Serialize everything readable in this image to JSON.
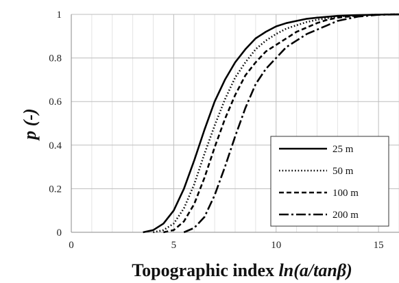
{
  "chart_data": {
    "type": "line",
    "title": "",
    "xlabel_prefix": "Topographic index ",
    "xlabel_italic": "ln(a/tanβ)",
    "ylabel": "p (-)",
    "xlim": [
      0,
      16
    ],
    "ylim": [
      0,
      1
    ],
    "x_ticks": [
      "0",
      "5",
      "10",
      "15"
    ],
    "y_ticks": [
      "0",
      "0.2",
      "0.4",
      "0.6",
      "0.8",
      "1"
    ],
    "grid": true,
    "legend_position": "bottom-right",
    "series": [
      {
        "name": "25 m",
        "dash": "solid",
        "x": [
          3.5,
          4.0,
          4.5,
          5.0,
          5.5,
          6.0,
          6.5,
          7.0,
          7.5,
          8.0,
          8.5,
          9.0,
          9.5,
          10.0,
          10.5,
          11.0,
          11.5,
          12.0,
          13.0,
          14.0,
          15.0,
          16.0
        ],
        "y": [
          0.0,
          0.01,
          0.04,
          0.1,
          0.2,
          0.33,
          0.47,
          0.6,
          0.7,
          0.78,
          0.84,
          0.89,
          0.92,
          0.945,
          0.96,
          0.97,
          0.98,
          0.985,
          0.993,
          0.997,
          0.999,
          1.0
        ]
      },
      {
        "name": "50 m",
        "dash": "dotted",
        "x": [
          4.0,
          4.5,
          5.0,
          5.5,
          6.0,
          6.5,
          7.0,
          7.5,
          8.0,
          8.5,
          9.0,
          9.5,
          10.0,
          10.5,
          11.0,
          11.5,
          12.0,
          13.0,
          14.0,
          15.0,
          16.0
        ],
        "y": [
          0.0,
          0.01,
          0.04,
          0.11,
          0.22,
          0.36,
          0.49,
          0.61,
          0.71,
          0.78,
          0.84,
          0.88,
          0.91,
          0.935,
          0.95,
          0.965,
          0.975,
          0.99,
          0.996,
          0.999,
          1.0
        ]
      },
      {
        "name": "100 m",
        "dash": "dashed",
        "x": [
          4.5,
          5.0,
          5.5,
          6.0,
          6.5,
          7.0,
          7.5,
          8.0,
          8.5,
          9.0,
          9.5,
          10.0,
          10.5,
          11.0,
          11.5,
          12.0,
          12.5,
          13.0,
          14.0,
          15.0,
          16.0
        ],
        "y": [
          0.0,
          0.01,
          0.05,
          0.13,
          0.25,
          0.39,
          0.52,
          0.63,
          0.72,
          0.78,
          0.83,
          0.86,
          0.89,
          0.92,
          0.94,
          0.96,
          0.975,
          0.985,
          0.995,
          0.999,
          1.0
        ]
      },
      {
        "name": "200 m",
        "dash": "dashdot",
        "x": [
          5.5,
          6.0,
          6.5,
          7.0,
          7.5,
          8.0,
          8.5,
          9.0,
          9.5,
          10.0,
          10.5,
          11.0,
          11.5,
          12.0,
          12.5,
          13.0,
          14.0,
          15.0,
          16.0
        ],
        "y": [
          0.0,
          0.02,
          0.07,
          0.17,
          0.3,
          0.44,
          0.57,
          0.68,
          0.75,
          0.8,
          0.85,
          0.88,
          0.91,
          0.93,
          0.95,
          0.97,
          0.99,
          0.998,
          1.0
        ]
      }
    ]
  }
}
